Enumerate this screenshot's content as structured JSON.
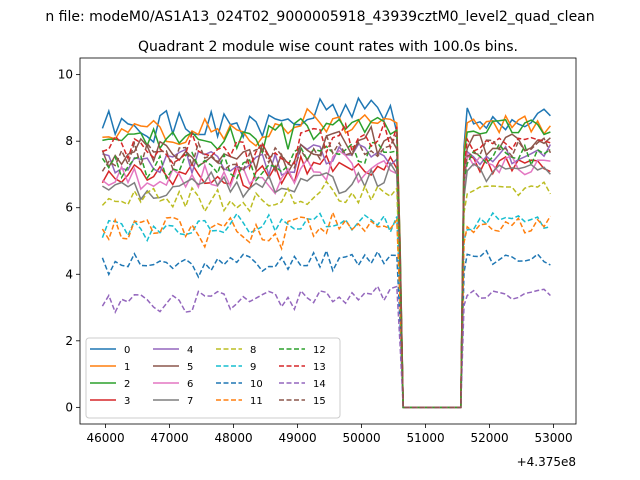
{
  "figure": {
    "suptitle": "n file: modeM0/AS1A13_024T02_9000005918_43939cztM0_level2_quad_clean",
    "x_offset_label": "+4.375e8"
  },
  "chart_data": {
    "type": "line",
    "title": "Quadrant 2 module wise count rates with 100.0s bins.",
    "xlabel": "",
    "ylabel": "",
    "x_offset": 437500000,
    "xlim": [
      45600,
      53350
    ],
    "ylim": [
      -0.5,
      10.5
    ],
    "x_ticks": [
      46000,
      47000,
      48000,
      49000,
      50000,
      51000,
      52000,
      53000
    ],
    "y_ticks": [
      0,
      2,
      4,
      6,
      8,
      10
    ],
    "grid": false,
    "legend": {
      "placement": "lower-left",
      "columns": 4
    },
    "gap": {
      "drop_start": 50600,
      "zero_start": 50650,
      "zero_end": 51550,
      "rise_end": 51600
    },
    "segments": [
      [
        45950,
        50550
      ],
      [
        51650,
        53000
      ]
    ],
    "series": [
      {
        "name": "0",
        "color": "#1f77b4",
        "dash": "solid",
        "level": 8.4,
        "seg2_level": 8.7,
        "amp": 0.45,
        "seed": 1
      },
      {
        "name": "1",
        "color": "#ff7f0e",
        "dash": "solid",
        "level": 8.3,
        "seg2_level": 8.5,
        "amp": 0.35,
        "seed": 2
      },
      {
        "name": "2",
        "color": "#2ca02c",
        "dash": "solid",
        "level": 8.1,
        "seg2_level": 8.4,
        "amp": 0.35,
        "seed": 3
      },
      {
        "name": "3",
        "color": "#d62728",
        "dash": "solid",
        "level": 7.0,
        "seg2_level": 7.3,
        "amp": 0.35,
        "seed": 4
      },
      {
        "name": "4",
        "color": "#9467bd",
        "dash": "solid",
        "level": 7.3,
        "seg2_level": 7.6,
        "amp": 0.4,
        "seed": 5
      },
      {
        "name": "5",
        "color": "#8c564b",
        "dash": "solid",
        "level": 7.6,
        "seg2_level": 7.9,
        "amp": 0.4,
        "seed": 6
      },
      {
        "name": "6",
        "color": "#e377c2",
        "dash": "solid",
        "level": 6.9,
        "seg2_level": 7.3,
        "amp": 0.4,
        "seed": 7
      },
      {
        "name": "7",
        "color": "#7f7f7f",
        "dash": "solid",
        "level": 6.6,
        "seg2_level": 7.0,
        "amp": 0.4,
        "seed": 8
      },
      {
        "name": "8",
        "color": "#bcbd22",
        "dash": "dashed",
        "level": 6.2,
        "seg2_level": 6.5,
        "amp": 0.35,
        "seed": 9
      },
      {
        "name": "9",
        "color": "#17becf",
        "dash": "dashed",
        "level": 5.4,
        "seg2_level": 5.6,
        "amp": 0.35,
        "seed": 10
      },
      {
        "name": "10",
        "color": "#1f77b4",
        "dash": "dashed",
        "level": 4.3,
        "seg2_level": 4.5,
        "amp": 0.3,
        "seed": 11
      },
      {
        "name": "11",
        "color": "#ff7f0e",
        "dash": "dashed",
        "level": 5.3,
        "seg2_level": 5.5,
        "amp": 0.4,
        "seed": 12
      },
      {
        "name": "12",
        "color": "#2ca02c",
        "dash": "dashed",
        "level": 7.3,
        "seg2_level": 7.6,
        "amp": 0.4,
        "seed": 13
      },
      {
        "name": "13",
        "color": "#d62728",
        "dash": "dashed",
        "level": 7.7,
        "seg2_level": 7.9,
        "amp": 0.4,
        "seed": 14
      },
      {
        "name": "14",
        "color": "#9467bd",
        "dash": "dashed",
        "level": 3.2,
        "seg2_level": 3.4,
        "amp": 0.3,
        "seed": 15
      },
      {
        "name": "15",
        "color": "#8c564b",
        "dash": "dashed",
        "level": 7.5,
        "seg2_level": 7.8,
        "amp": 0.4,
        "seed": 16
      }
    ]
  }
}
